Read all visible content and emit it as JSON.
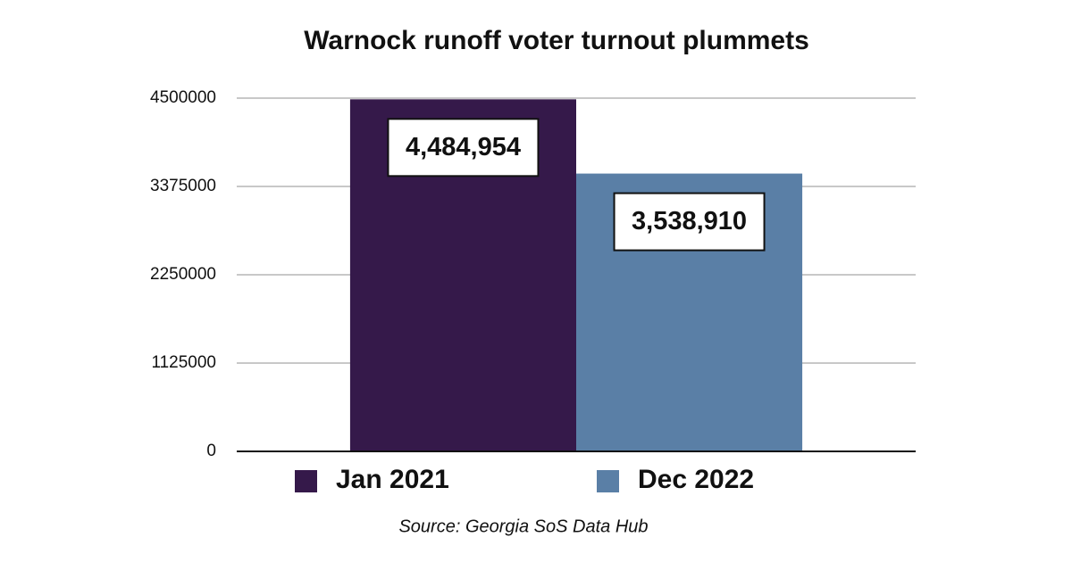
{
  "chart_data": {
    "type": "bar",
    "title": "Warnock runoff voter turnout plummets",
    "source": "Source: Georgia SoS Data Hub",
    "categories": [
      null
    ],
    "series": [
      {
        "name": "Jan 2021",
        "color": "#35194a",
        "values": [
          4484954
        ],
        "value_labels": [
          "4,484,954"
        ]
      },
      {
        "name": "Dec 2022",
        "color": "#5a7fa6",
        "values": [
          3538910
        ],
        "value_labels": [
          "3,538,910"
        ]
      }
    ],
    "ylim": [
      0,
      4500000
    ],
    "yticks": [
      0,
      1125000,
      2250000,
      3375000,
      4500000
    ],
    "grid": true,
    "legend": "bottom"
  }
}
